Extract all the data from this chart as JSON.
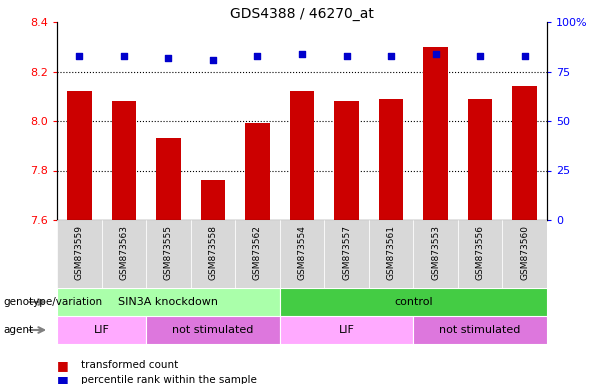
{
  "title": "GDS4388 / 46270_at",
  "samples": [
    "GSM873559",
    "GSM873563",
    "GSM873555",
    "GSM873558",
    "GSM873562",
    "GSM873554",
    "GSM873557",
    "GSM873561",
    "GSM873553",
    "GSM873556",
    "GSM873560"
  ],
  "bar_values": [
    8.12,
    8.08,
    7.93,
    7.76,
    7.99,
    8.12,
    8.08,
    8.09,
    8.3,
    8.09,
    8.14
  ],
  "percentile_values": [
    83,
    83,
    82,
    81,
    83,
    84,
    83,
    83,
    84,
    83,
    83
  ],
  "bar_color": "#cc0000",
  "dot_color": "#0000cc",
  "ylim_left": [
    7.6,
    8.4
  ],
  "ylim_right": [
    0,
    100
  ],
  "yticks_left": [
    7.6,
    7.8,
    8.0,
    8.2,
    8.4
  ],
  "yticks_right": [
    0,
    25,
    50,
    75,
    100
  ],
  "ytick_labels_right": [
    "0",
    "25",
    "50",
    "75",
    "100%"
  ],
  "grid_values": [
    7.8,
    8.0,
    8.2
  ],
  "genotype_groups": [
    {
      "label": "SIN3A knockdown",
      "start": 0,
      "end": 4,
      "color": "#aaffaa"
    },
    {
      "label": "control",
      "start": 5,
      "end": 10,
      "color": "#44cc44"
    }
  ],
  "agent_groups": [
    {
      "label": "LIF",
      "start": 0,
      "end": 1,
      "color": "#ffaaff"
    },
    {
      "label": "not stimulated",
      "start": 2,
      "end": 4,
      "color": "#dd77dd"
    },
    {
      "label": "LIF",
      "start": 5,
      "end": 7,
      "color": "#ffaaff"
    },
    {
      "label": "not stimulated",
      "start": 8,
      "end": 10,
      "color": "#dd77dd"
    }
  ],
  "legend_bar_label": "transformed count",
  "legend_dot_label": "percentile rank within the sample",
  "genotype_label": "genotype/variation",
  "agent_label": "agent",
  "bg_color": "#ffffff",
  "plot_bg_color": "#ffffff",
  "xticklabel_bg": "#d8d8d8"
}
